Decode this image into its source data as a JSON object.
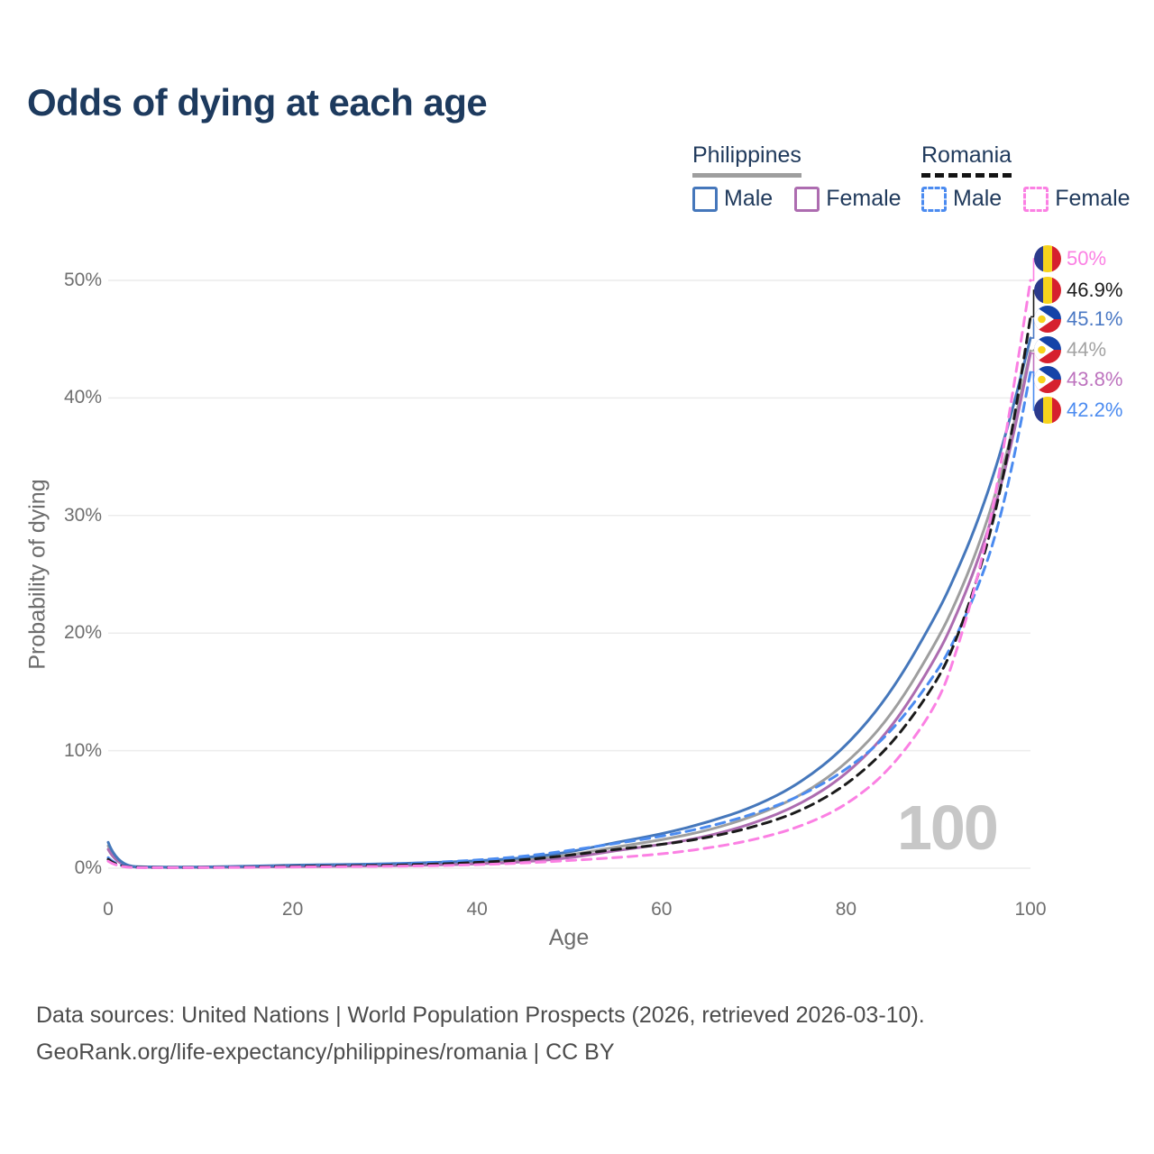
{
  "title": "Odds of dying at each age",
  "watermark": "100",
  "legend": {
    "groups": [
      {
        "country": "Philippines",
        "line_style": "solid",
        "line_color": "#9e9e9e",
        "entries": [
          {
            "label": "Male",
            "color": "#4577bb",
            "dashed": false
          },
          {
            "label": "Female",
            "color": "#ad6cb0",
            "dashed": false
          }
        ]
      },
      {
        "country": "Romania",
        "line_style": "dashed",
        "line_color": "#141414",
        "entries": [
          {
            "label": "Male",
            "color": "#4b8bf0",
            "dashed": true
          },
          {
            "label": "Female",
            "color": "#fb80e3",
            "dashed": true
          }
        ]
      }
    ]
  },
  "chart_data": {
    "type": "line",
    "title": "Odds of dying at each age",
    "xlabel": "Age",
    "ylabel": "Probability of dying",
    "xlim": [
      0,
      100
    ],
    "ylim": [
      0,
      50
    ],
    "grid": "horizontal",
    "legend_position": "top-right",
    "x_ticks": [
      {
        "value": 0,
        "label": "0"
      },
      {
        "value": 20,
        "label": "20"
      },
      {
        "value": 40,
        "label": "40"
      },
      {
        "value": 60,
        "label": "60"
      },
      {
        "value": 80,
        "label": "80"
      },
      {
        "value": 100,
        "label": "100"
      }
    ],
    "y_ticks": [
      {
        "value": 0,
        "label": "0%"
      },
      {
        "value": 10,
        "label": "10%"
      },
      {
        "value": 20,
        "label": "20%"
      },
      {
        "value": 30,
        "label": "30%"
      },
      {
        "value": 40,
        "label": "40%"
      },
      {
        "value": 50,
        "label": "50%"
      }
    ],
    "ages": [
      0,
      1,
      5,
      10,
      15,
      20,
      25,
      30,
      35,
      40,
      45,
      50,
      55,
      60,
      65,
      70,
      75,
      80,
      85,
      90,
      92,
      94,
      96,
      98,
      100
    ],
    "series": [
      {
        "name": "Philippines Both sexes",
        "country": "Philippines",
        "sex": "Both",
        "style": "solid",
        "color": "#9e9e9e",
        "label_color": "#a3a3a3",
        "flag": "ph",
        "end_label": "44%",
        "values": [
          1.9,
          0.16,
          0.08,
          0.08,
          0.12,
          0.2,
          0.24,
          0.28,
          0.36,
          0.48,
          0.68,
          1.1,
          1.8,
          2.4,
          3.2,
          4.4,
          6.1,
          8.8,
          13.0,
          19.5,
          22.8,
          26.6,
          31.2,
          37.0,
          44.0
        ]
      },
      {
        "name": "Philippines Female",
        "country": "Philippines",
        "sex": "Female",
        "style": "solid",
        "color": "#ad6cb0",
        "label_color": "#bd72be",
        "flag": "ph",
        "end_label": "43.8%",
        "values": [
          1.6,
          0.14,
          0.07,
          0.07,
          0.09,
          0.13,
          0.16,
          0.2,
          0.26,
          0.36,
          0.52,
          0.85,
          1.5,
          2.0,
          2.7,
          3.8,
          5.4,
          7.9,
          11.9,
          18.2,
          21.6,
          25.5,
          30.2,
          36.2,
          43.8
        ]
      },
      {
        "name": "Philippines Male",
        "country": "Philippines",
        "sex": "Male",
        "style": "solid",
        "color": "#4577bb",
        "label_color": "#4a78c4",
        "flag": "ph",
        "end_label": "45.1%",
        "values": [
          2.2,
          0.18,
          0.09,
          0.09,
          0.16,
          0.26,
          0.31,
          0.37,
          0.47,
          0.62,
          0.85,
          1.35,
          2.2,
          2.9,
          3.9,
          5.2,
          7.2,
          10.3,
          15.0,
          21.8,
          25.2,
          28.9,
          33.4,
          38.8,
          45.1
        ]
      },
      {
        "name": "Romania Male",
        "country": "Romania",
        "sex": "Male",
        "style": "dashed",
        "color": "#4b8bf0",
        "label_color": "#4b8bf0",
        "flag": "ro",
        "end_label": "42.2%",
        "values": [
          0.9,
          0.1,
          0.06,
          0.07,
          0.12,
          0.21,
          0.27,
          0.34,
          0.48,
          0.68,
          1.0,
          1.5,
          2.1,
          2.7,
          3.5,
          4.6,
          6.1,
          8.3,
          11.6,
          16.8,
          19.8,
          23.3,
          27.6,
          34.0,
          42.2
        ]
      },
      {
        "name": "Romania Both sexes",
        "country": "Romania",
        "sex": "Both",
        "style": "dashed",
        "color": "#1a1a1a",
        "label_color": "#1a1a1a",
        "flag": "ro",
        "end_label": "46.9%",
        "values": [
          0.75,
          0.09,
          0.05,
          0.06,
          0.09,
          0.16,
          0.2,
          0.25,
          0.34,
          0.48,
          0.7,
          1.1,
          1.6,
          2.0,
          2.6,
          3.5,
          4.8,
          7.0,
          10.5,
          16.0,
          19.5,
          24.0,
          29.5,
          37.0,
          46.9
        ]
      },
      {
        "name": "Romania Female",
        "country": "Romania",
        "sex": "Female",
        "style": "dashed",
        "color": "#fb80e3",
        "label_color": "#fb80e3",
        "flag": "ro",
        "end_label": "50%",
        "values": [
          0.6,
          0.08,
          0.04,
          0.05,
          0.07,
          0.1,
          0.13,
          0.16,
          0.21,
          0.3,
          0.44,
          0.65,
          0.9,
          1.2,
          1.7,
          2.4,
          3.5,
          5.3,
          8.5,
          14.0,
          18.5,
          23.8,
          30.8,
          40.0,
          50.0
        ]
      }
    ],
    "end_labels": [
      "50%",
      "46.9%",
      "45.1%",
      "44%",
      "43.8%",
      "42.2%"
    ]
  },
  "footer": {
    "lines": [
      "Data sources: United Nations | World Population Prospects (2026, retrieved 2026-03-10).",
      "GeoRank.org/life-expectancy/philippines/romania | CC BY"
    ]
  }
}
